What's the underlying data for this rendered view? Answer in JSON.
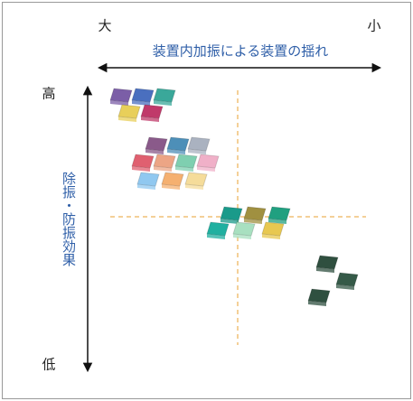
{
  "axis": {
    "left_label": "大",
    "right_label": "小",
    "x_title": "装置内加振による装置の揺れ",
    "top_label": "高",
    "bottom_label": "低",
    "y_title": "除振・防振効果"
  }
}
